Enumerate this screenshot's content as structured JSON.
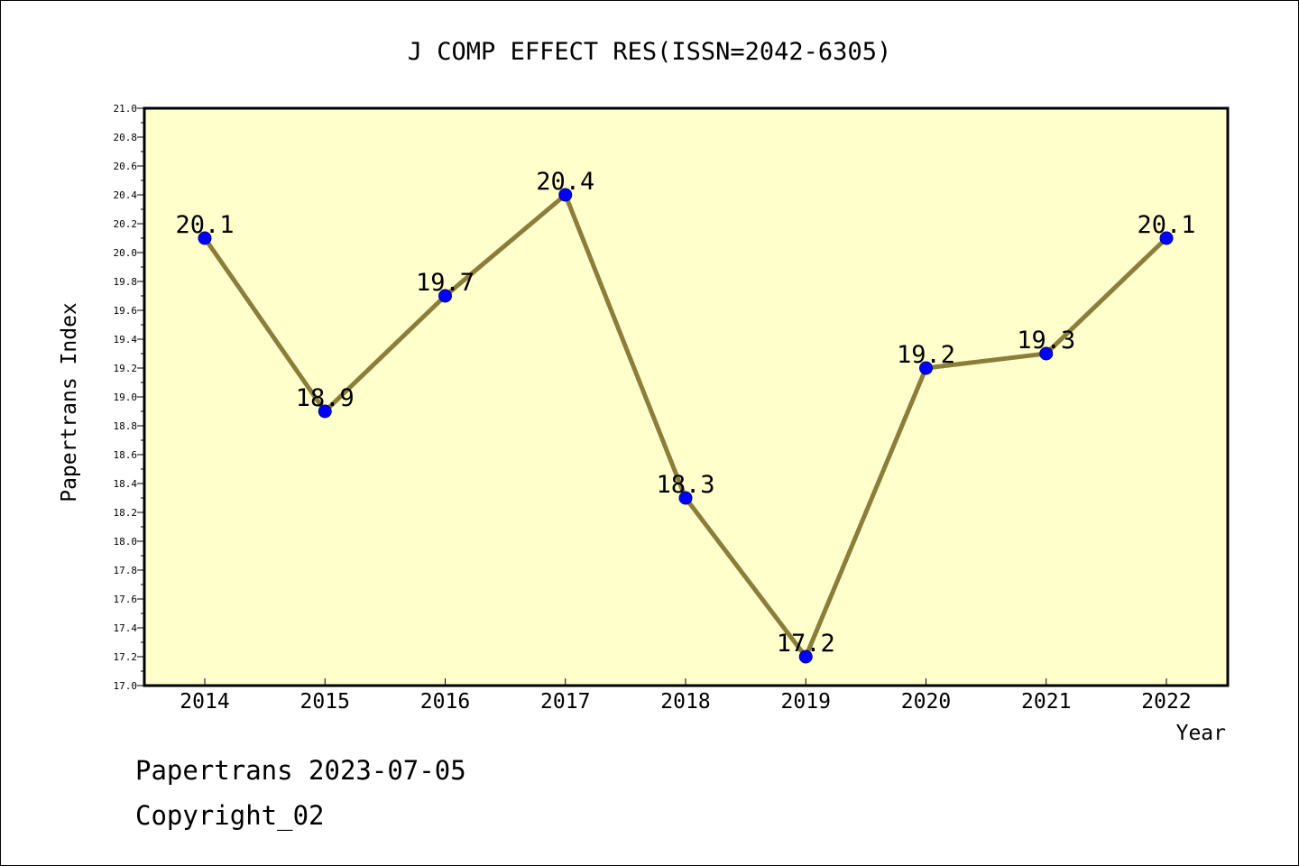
{
  "chart_data": {
    "type": "line",
    "title": "J COMP EFFECT RES(ISSN=2042-6305)",
    "xlabel": "Year",
    "ylabel": "Papertrans Index",
    "categories": [
      "2014",
      "2015",
      "2016",
      "2017",
      "2018",
      "2019",
      "2020",
      "2021",
      "2022"
    ],
    "values": [
      20.1,
      18.9,
      19.7,
      20.4,
      18.3,
      17.2,
      19.2,
      19.3,
      20.1
    ],
    "data_labels": [
      "20.1",
      "18.9",
      "19.7",
      "20.4",
      "18.3",
      "17.2",
      "19.2",
      "19.3",
      "20.1"
    ],
    "ylim": [
      17.0,
      21.0
    ],
    "yticks": [
      "17.0",
      "17.2",
      "17.4",
      "17.6",
      "17.8",
      "18.0",
      "18.2",
      "18.4",
      "18.6",
      "18.8",
      "19.0",
      "19.2",
      "19.4",
      "19.6",
      "19.8",
      "20.0",
      "20.2",
      "20.4",
      "20.6",
      "20.8",
      "21.0"
    ],
    "grid": false,
    "legend": "none",
    "colors": {
      "plot_background": "#ffffcc",
      "line": "#8b7d3a",
      "marker": "#0000ff",
      "marker_edge": "#000080"
    }
  },
  "footer": {
    "line1": "Papertrans 2023-07-05",
    "line2": "Copyright_02"
  }
}
